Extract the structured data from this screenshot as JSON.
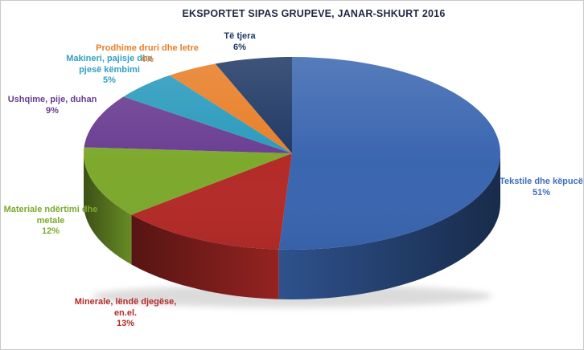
{
  "chart_data": {
    "type": "pie",
    "style": "3d",
    "title": "EKSPORTET SIPAS GRUPEVE, JANAR-SHKURT 2016",
    "title_color": "#1F2840",
    "background": "#FFFFFF",
    "border_color": "#C8C8C8",
    "unit": "percent",
    "start_angle": "12-oclock, clockwise",
    "legend_position": "none",
    "slices": [
      {
        "label": "Tekstile dhe këpucë",
        "label_lines": [
          "Tekstile dhe këpucë"
        ],
        "value": 51,
        "pct": "51%",
        "color": "#3A66B0",
        "label_color": "#3E6DBE"
      },
      {
        "label": "Minerale, lëndë djegëse, en.el.",
        "label_lines": [
          "Minerale, lëndë djegëse,",
          "en.el."
        ],
        "value": 13,
        "pct": "13%",
        "color": "#B42B28",
        "label_color": "#B42B28"
      },
      {
        "label": "Materiale ndërtimi dhe metale",
        "label_lines": [
          "Materiale ndërtimi dhe",
          "metale"
        ],
        "value": 12,
        "pct": "12%",
        "color": "#7DA92D",
        "label_color": "#7DA92D"
      },
      {
        "label": "Ushqime, pije, duhan",
        "label_lines": [
          "Ushqime, pije, duhan"
        ],
        "value": 9,
        "pct": "9%",
        "color": "#6A3D92",
        "label_color": "#6A3D92"
      },
      {
        "label": "Makineri, pajisje dhe pjesë këmbimi",
        "label_lines": [
          "Makineri, pajisje dhe",
          "pjesë këmbimi"
        ],
        "value": 5,
        "pct": "5%",
        "color": "#2A9ABD",
        "label_color": "#2FA0C4"
      },
      {
        "label": "Prodhime druri dhe letre",
        "label_lines": [
          "Prodhime druri dhe letre"
        ],
        "value": 4,
        "pct": "4%",
        "color": "#E87E27",
        "label_color": "#E87E27"
      },
      {
        "label": "Të tjera",
        "label_lines": [
          "Të tjera"
        ],
        "value": 6,
        "pct": "6%",
        "color": "#1F3864",
        "label_color": "#1F3864"
      }
    ]
  }
}
